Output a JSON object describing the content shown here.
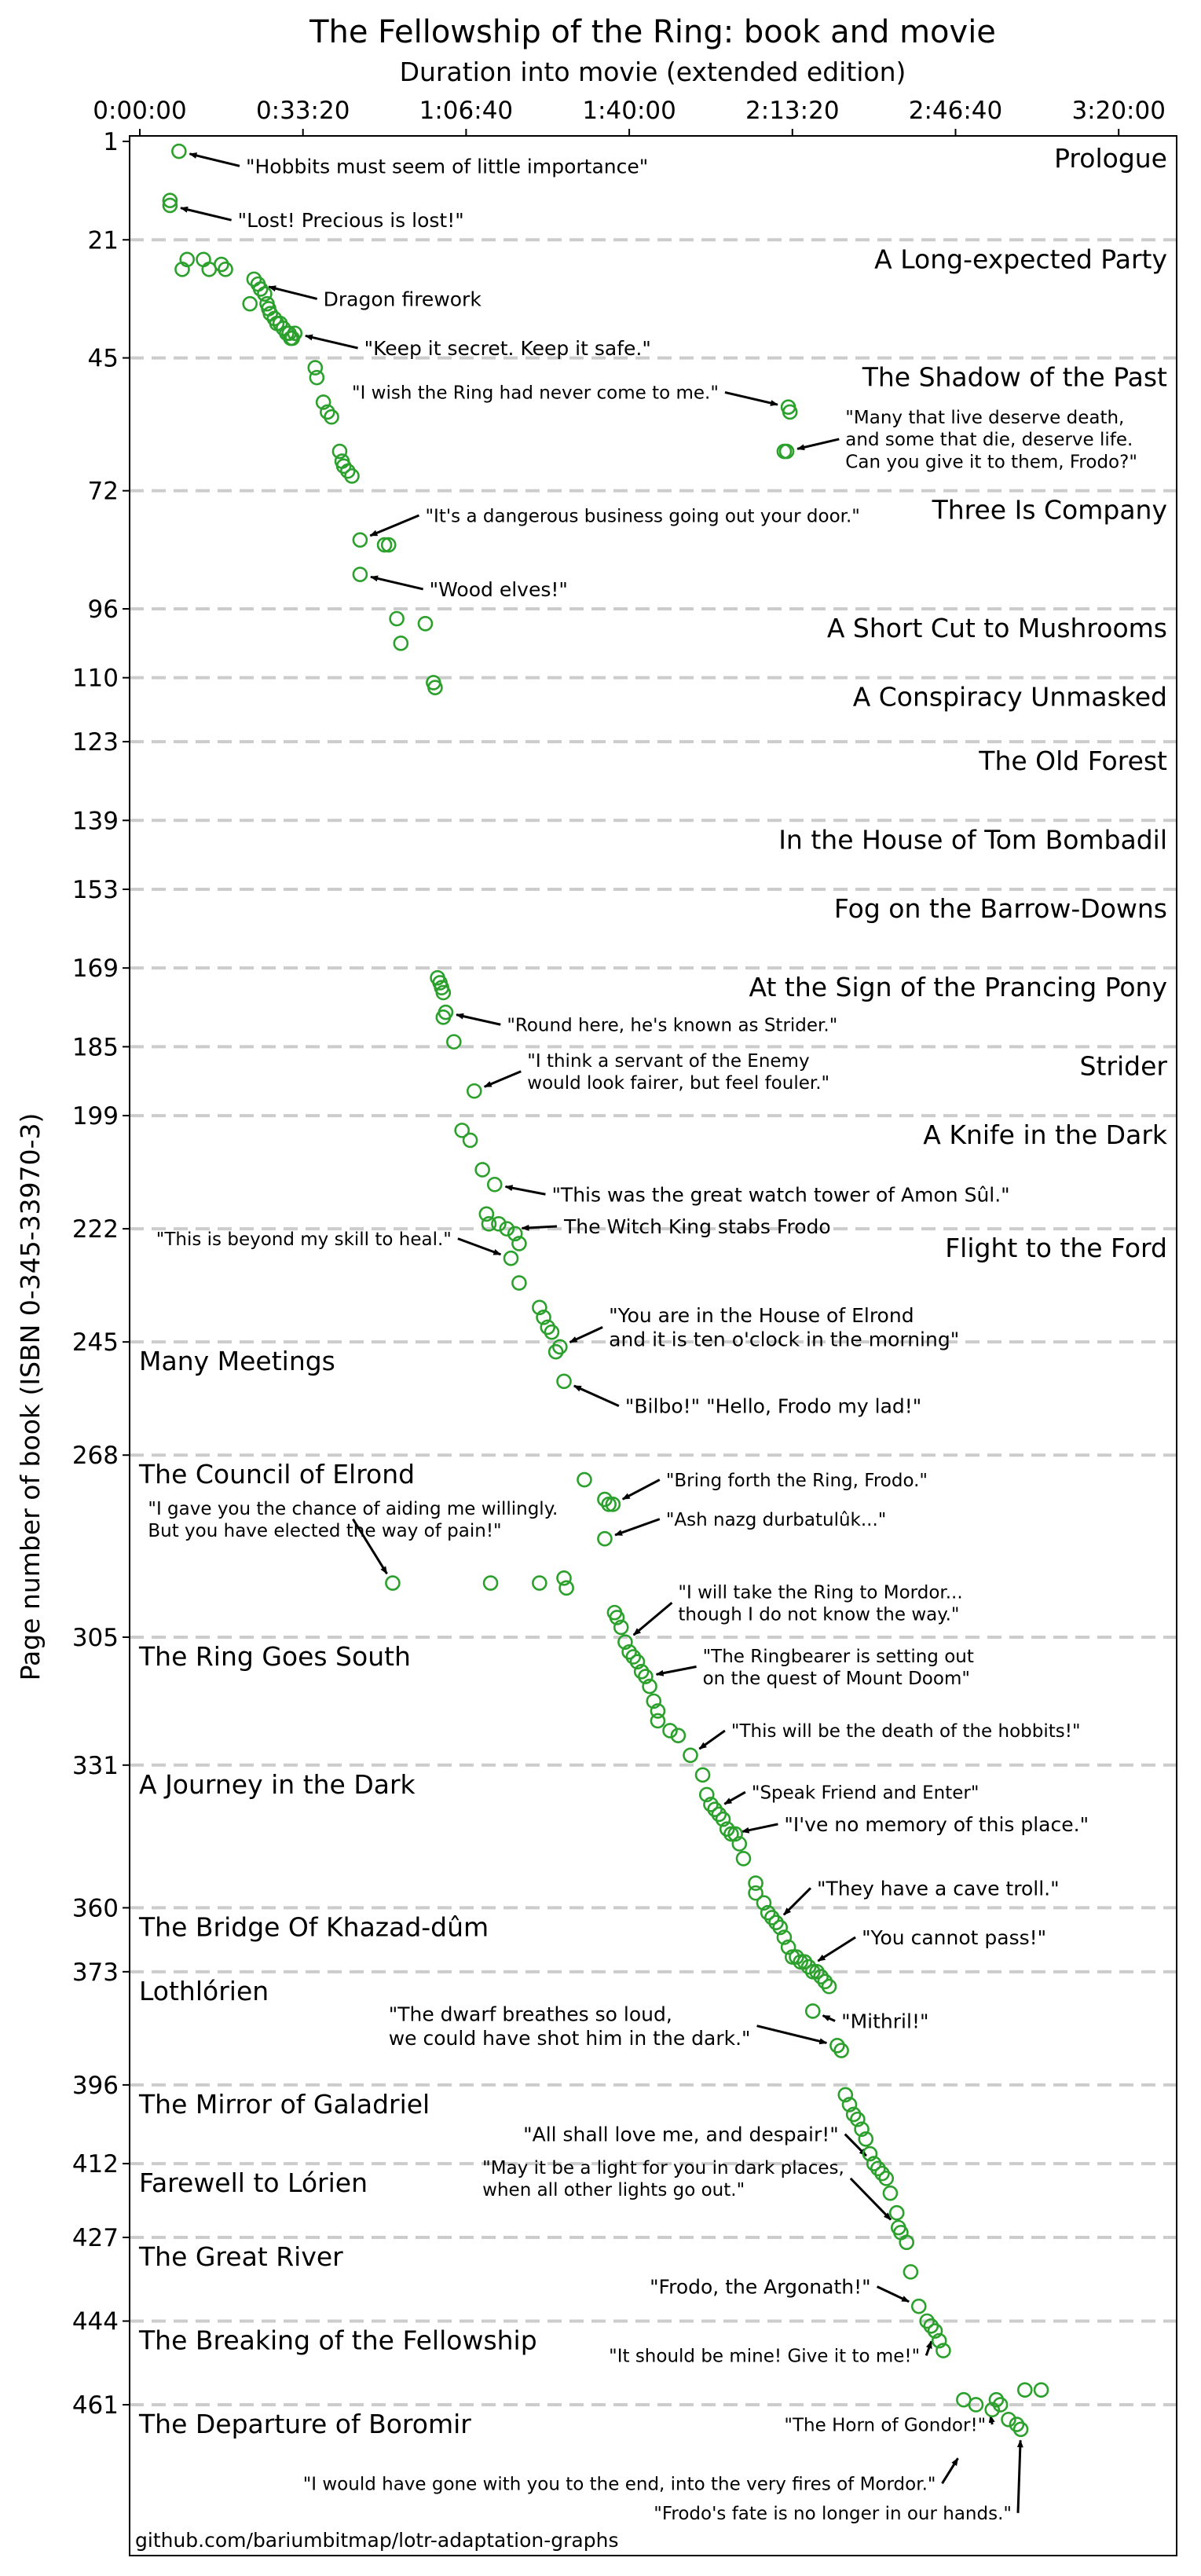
{
  "chart_data": {
    "type": "scatter",
    "title": "The Fellowship of the Ring: book and movie",
    "xlabel": "Duration into movie (extended edition)",
    "ylabel": "Page number of book (ISBN 0-345-33970-3)",
    "xlim": [
      0,
      13000
    ],
    "ylim": [
      1,
      490
    ],
    "y_inverted": true,
    "x_axis_position": "top",
    "x_ticks": [
      {
        "value": 0,
        "label": "0:00:00"
      },
      {
        "value": 2000,
        "label": "0:33:20"
      },
      {
        "value": 4000,
        "label": "1:06:40"
      },
      {
        "value": 6000,
        "label": "1:40:00"
      },
      {
        "value": 8000,
        "label": "2:13:20"
      },
      {
        "value": 10000,
        "label": "2:46:40"
      },
      {
        "value": 12000,
        "label": "3:20:00"
      }
    ],
    "grid": "dashed horizontal lines at chapter starts",
    "marker": {
      "shape": "open circle",
      "color": "#2ca02c"
    },
    "chapters": [
      {
        "page": 1,
        "name": "Prologue",
        "align": "right"
      },
      {
        "page": 21,
        "name": "A Long-expected Party",
        "align": "right"
      },
      {
        "page": 45,
        "name": "The Shadow of the Past",
        "align": "right"
      },
      {
        "page": 72,
        "name": "Three Is Company",
        "align": "right"
      },
      {
        "page": 96,
        "name": "A Short Cut to Mushrooms",
        "align": "right"
      },
      {
        "page": 110,
        "name": "A Conspiracy Unmasked",
        "align": "right"
      },
      {
        "page": 123,
        "name": "The Old Forest",
        "align": "right"
      },
      {
        "page": 139,
        "name": "In the House of Tom Bombadil",
        "align": "right"
      },
      {
        "page": 153,
        "name": "Fog on the Barrow-Downs",
        "align": "right"
      },
      {
        "page": 169,
        "name": "At the Sign of the Prancing Pony",
        "align": "right"
      },
      {
        "page": 185,
        "name": "Strider",
        "align": "right"
      },
      {
        "page": 199,
        "name": "A Knife in the Dark",
        "align": "right"
      },
      {
        "page": 222,
        "name": "Flight to the Ford",
        "align": "right"
      },
      {
        "page": 245,
        "name": "Many Meetings",
        "align": "left"
      },
      {
        "page": 268,
        "name": "The Council of Elrond",
        "align": "left"
      },
      {
        "page": 305,
        "name": "The Ring Goes South",
        "align": "left"
      },
      {
        "page": 331,
        "name": "A Journey in the Dark",
        "align": "left"
      },
      {
        "page": 360,
        "name": "The Bridge Of Khazad-dûm",
        "align": "left"
      },
      {
        "page": 373,
        "name": "Lothlórien",
        "align": "left"
      },
      {
        "page": 396,
        "name": "The Mirror of Galadriel",
        "align": "left"
      },
      {
        "page": 412,
        "name": "Farewell to Lórien",
        "align": "left"
      },
      {
        "page": 427,
        "name": "The Great River",
        "align": "left"
      },
      {
        "page": 444,
        "name": "The Breaking of the Fellowship",
        "align": "left"
      },
      {
        "page": 461,
        "name": "The Departure of Boromir",
        "align": "left"
      }
    ],
    "points": [
      [
        480,
        3
      ],
      [
        370,
        14
      ],
      [
        370,
        13
      ],
      [
        580,
        25
      ],
      [
        520,
        27
      ],
      [
        780,
        25
      ],
      [
        850,
        27
      ],
      [
        1000,
        26
      ],
      [
        1050,
        27
      ],
      [
        1400,
        29
      ],
      [
        1450,
        30
      ],
      [
        1480,
        31
      ],
      [
        1530,
        32
      ],
      [
        1560,
        34
      ],
      [
        1580,
        35
      ],
      [
        1600,
        36
      ],
      [
        1650,
        37
      ],
      [
        1680,
        38
      ],
      [
        1720,
        38
      ],
      [
        1760,
        39
      ],
      [
        1800,
        40
      ],
      [
        1830,
        40
      ],
      [
        1850,
        41
      ],
      [
        1900,
        40
      ],
      [
        1870,
        41
      ],
      [
        1350,
        34
      ],
      [
        2150,
        47
      ],
      [
        2170,
        49
      ],
      [
        2250,
        54
      ],
      [
        2300,
        56
      ],
      [
        2350,
        57
      ],
      [
        2450,
        64
      ],
      [
        2480,
        66
      ],
      [
        2500,
        67
      ],
      [
        2550,
        68
      ],
      [
        2600,
        69
      ],
      [
        7950,
        55
      ],
      [
        7970,
        56
      ],
      [
        7900,
        64
      ],
      [
        7930,
        64
      ],
      [
        2700,
        82
      ],
      [
        3000,
        83
      ],
      [
        3050,
        83
      ],
      [
        2700,
        89
      ],
      [
        3150,
        98
      ],
      [
        3500,
        99
      ],
      [
        3200,
        103
      ],
      [
        3600,
        111
      ],
      [
        3620,
        112
      ],
      [
        3650,
        171
      ],
      [
        3680,
        172
      ],
      [
        3700,
        173
      ],
      [
        3720,
        174
      ],
      [
        3750,
        178
      ],
      [
        3720,
        179
      ],
      [
        3850,
        184
      ],
      [
        4100,
        194
      ],
      [
        3950,
        202
      ],
      [
        4050,
        204
      ],
      [
        4200,
        210
      ],
      [
        4350,
        213
      ],
      [
        4250,
        219
      ],
      [
        4280,
        221
      ],
      [
        4400,
        221
      ],
      [
        4500,
        222
      ],
      [
        4600,
        223
      ],
      [
        4650,
        225
      ],
      [
        4550,
        228
      ],
      [
        4650,
        233
      ],
      [
        4900,
        238
      ],
      [
        4950,
        240
      ],
      [
        5000,
        242
      ],
      [
        5050,
        243
      ],
      [
        5150,
        246
      ],
      [
        5100,
        247
      ],
      [
        5200,
        253
      ],
      [
        5450,
        273
      ],
      [
        5700,
        277
      ],
      [
        5750,
        278
      ],
      [
        5800,
        278
      ],
      [
        5700,
        285
      ],
      [
        3100,
        294
      ],
      [
        4300,
        294
      ],
      [
        4900,
        294
      ],
      [
        5200,
        293
      ],
      [
        5230,
        295
      ],
      [
        5820,
        300
      ],
      [
        5850,
        301
      ],
      [
        5900,
        303
      ],
      [
        5950,
        306
      ],
      [
        6000,
        308
      ],
      [
        6050,
        309
      ],
      [
        6100,
        310
      ],
      [
        6150,
        312
      ],
      [
        6200,
        313
      ],
      [
        6250,
        315
      ],
      [
        6300,
        318
      ],
      [
        6350,
        320
      ],
      [
        6350,
        322
      ],
      [
        6500,
        324
      ],
      [
        6600,
        325
      ],
      [
        6750,
        329
      ],
      [
        6900,
        333
      ],
      [
        6950,
        337
      ],
      [
        7000,
        339
      ],
      [
        7050,
        340
      ],
      [
        7100,
        341
      ],
      [
        7150,
        342
      ],
      [
        7200,
        344
      ],
      [
        7250,
        345
      ],
      [
        7300,
        345
      ],
      [
        7350,
        347
      ],
      [
        7400,
        350
      ],
      [
        7550,
        355
      ],
      [
        7550,
        357
      ],
      [
        7650,
        359
      ],
      [
        7700,
        361
      ],
      [
        7750,
        362
      ],
      [
        7800,
        363
      ],
      [
        7850,
        364
      ],
      [
        7900,
        366
      ],
      [
        7950,
        368
      ],
      [
        8000,
        370
      ],
      [
        8050,
        370
      ],
      [
        8100,
        371
      ],
      [
        8150,
        371
      ],
      [
        8200,
        372
      ],
      [
        8250,
        373
      ],
      [
        8300,
        373
      ],
      [
        8350,
        374
      ],
      [
        8400,
        375
      ],
      [
        8450,
        376
      ],
      [
        8250,
        381
      ],
      [
        8550,
        388
      ],
      [
        8600,
        389
      ],
      [
        8650,
        398
      ],
      [
        8700,
        400
      ],
      [
        8750,
        402
      ],
      [
        8800,
        403
      ],
      [
        8850,
        405
      ],
      [
        8900,
        407
      ],
      [
        8950,
        410
      ],
      [
        9000,
        412
      ],
      [
        9050,
        413
      ],
      [
        9100,
        414
      ],
      [
        9150,
        415
      ],
      [
        9200,
        418
      ],
      [
        9280,
        422
      ],
      [
        9300,
        425
      ],
      [
        9330,
        426
      ],
      [
        9400,
        428
      ],
      [
        9450,
        434
      ],
      [
        9550,
        441
      ],
      [
        9650,
        444
      ],
      [
        9700,
        445
      ],
      [
        9750,
        446
      ],
      [
        9800,
        448
      ],
      [
        9850,
        450
      ],
      [
        10100,
        460
      ],
      [
        10250,
        461
      ],
      [
        10500,
        460
      ],
      [
        10550,
        461
      ],
      [
        10850,
        458
      ],
      [
        11050,
        458
      ],
      [
        10450,
        462
      ],
      [
        10650,
        464
      ],
      [
        10750,
        465
      ],
      [
        10800,
        466
      ]
    ],
    "annotations": [
      {
        "text": "\"Hobbits must seem of little importance\"",
        "target": [
          480,
          3
        ],
        "tx": 1300,
        "ty": 6,
        "size": 25
      },
      {
        "text": "\"Lost! Precious is lost!\"",
        "target": [
          370,
          14
        ],
        "tx": 1200,
        "ty": 17,
        "size": 25
      },
      {
        "text": "Dragon firework",
        "target": [
          1450,
          30
        ],
        "tx": 2250,
        "ty": 33,
        "size": 25
      },
      {
        "text": "\"Keep it secret. Keep it safe.\"",
        "target": [
          1900,
          40
        ],
        "tx": 2750,
        "ty": 43,
        "size": 25
      },
      {
        "text": "\"I wish the Ring had never come to me.\"",
        "target": [
          7950,
          55
        ],
        "tx": 2600,
        "ty": 52,
        "size": 23
      },
      {
        "lines": [
          "\"Many that live deserve death,",
          "and some that die, deserve life.",
          "Can you give it to them, Frodo?\""
        ],
        "target": [
          7930,
          64
        ],
        "tx": 8650,
        "ty": 61.5,
        "size": 23
      },
      {
        "text": "\"It's a dangerous business going out your door.\"",
        "target": [
          2700,
          82
        ],
        "tx": 3500,
        "ty": 77,
        "size": 23
      },
      {
        "text": "\"Wood elves!\"",
        "target": [
          2700,
          89
        ],
        "tx": 3550,
        "ty": 92,
        "size": 25
      },
      {
        "text": "\"Round here, he's known as Strider.\"",
        "target": [
          3750,
          178
        ],
        "tx": 4500,
        "ty": 180.5,
        "size": 23
      },
      {
        "lines": [
          "\"I think a servant of the Enemy",
          "would look fairer, but feel fouler.\""
        ],
        "target": [
          4100,
          194
        ],
        "tx": 4750,
        "ty": 190,
        "size": 23
      },
      {
        "text": "\"This was the great watch tower of Amon Sûl.\"",
        "target": [
          4350,
          213
        ],
        "tx": 5050,
        "ty": 215,
        "size": 25
      },
      {
        "text": "The Witch King stabs Frodo",
        "target": [
          4550,
          222
        ],
        "tx": 5200,
        "ty": 221.5,
        "size": 25
      },
      {
        "text": "\"This is beyond my skill to heal.\"",
        "target": [
          4550,
          228
        ],
        "tx": 200,
        "ty": 224,
        "size": 23
      },
      {
        "lines": [
          "\"You are in the House of Elrond",
          "and it is ten o'clock in the morning\""
        ],
        "target": [
          5150,
          246
        ],
        "tx": 5750,
        "ty": 242,
        "size": 25
      },
      {
        "text": "\"Bilbo!\" \"Hello, Frodo my lad!\"",
        "target": [
          5200,
          253
        ],
        "tx": 5950,
        "ty": 258,
        "size": 25
      },
      {
        "text": "\"Bring forth the Ring, Frodo.\"",
        "target": [
          5800,
          278
        ],
        "tx": 6450,
        "ty": 273,
        "size": 23
      },
      {
        "text": "\"Ash nazg durbatulûk...\"",
        "target": [
          5700,
          285
        ],
        "tx": 6450,
        "ty": 281,
        "size": 23
      },
      {
        "lines": [
          "\"I gave you the chance of aiding me willingly.",
          "But you have elected the way of pain!\""
        ],
        "target": [
          3100,
          294
        ],
        "tx": 100,
        "ty": 281,
        "size": 23
      },
      {
        "lines": [
          "\"I will take the Ring to Mordor...",
          "though I do not know the way.\""
        ],
        "target": [
          5950,
          306
        ],
        "tx": 6600,
        "ty": 298,
        "size": 23
      },
      {
        "lines": [
          "\"The Ringbearer is setting out",
          "on the quest of Mount Doom\""
        ],
        "target": [
          6200,
          313
        ],
        "tx": 6900,
        "ty": 311,
        "size": 23
      },
      {
        "text": "\"This will be the death of the hobbits!\"",
        "target": [
          6750,
          329
        ],
        "tx": 7250,
        "ty": 324,
        "size": 23
      },
      {
        "text": "\"Speak Friend and Enter\"",
        "target": [
          7050,
          340
        ],
        "tx": 7500,
        "ty": 336.5,
        "size": 23
      },
      {
        "text": "\"I've no memory of this place.\"",
        "target": [
          7250,
          345
        ],
        "tx": 7900,
        "ty": 343,
        "size": 25
      },
      {
        "text": "\"They have a cave troll.\"",
        "target": [
          7800,
          363
        ],
        "tx": 8300,
        "ty": 356,
        "size": 25
      },
      {
        "text": "\"You cannot pass!\"",
        "target": [
          8200,
          372
        ],
        "tx": 8850,
        "ty": 366,
        "size": 25
      },
      {
        "text": "\"Mithril!\"",
        "target": [
          8250,
          381
        ],
        "tx": 8600,
        "ty": 383,
        "size": 25
      },
      {
        "lines": [
          "\"The dwarf breathes so loud,",
          "we could have shot him in the dark.\""
        ],
        "target": [
          8550,
          388
        ],
        "tx": 3050,
        "ty": 384,
        "size": 25
      },
      {
        "text": "\"All shall love me, and despair!\"",
        "target": [
          9000,
          412
        ],
        "tx": 4700,
        "ty": 406,
        "size": 25
      },
      {
        "lines": [
          "\"May it be a light for you in dark places,",
          "when all other lights go out.\""
        ],
        "target": [
          9300,
          425
        ],
        "tx": 4200,
        "ty": 415,
        "size": 23
      },
      {
        "text": "\"Frodo, the Argonath!\"",
        "target": [
          9550,
          441
        ],
        "tx": 6250,
        "ty": 437,
        "size": 25
      },
      {
        "text": "\"It should be mine! Give it to me!\"",
        "target": [
          9750,
          446
        ],
        "tx": 5750,
        "ty": 451,
        "size": 23
      },
      {
        "text": "\"The Horn of Gondor!\"",
        "target": [
          10400,
          461
        ],
        "tx": 7900,
        "ty": 465,
        "size": 23
      },
      {
        "text": "\"I would have gone with you to the end, into the very fires of Mordor.\"",
        "target": [
          10100,
          470
        ],
        "tx": 2000,
        "ty": 477,
        "size": 23
      },
      {
        "text": "\"Frodo's fate is no longer in our hands.\"",
        "target": [
          10800,
          466
        ],
        "tx": 6300,
        "ty": 483,
        "size": 23
      }
    ],
    "footer": "github.com/bariumbitmap/lotr-adaptation-graphs"
  }
}
